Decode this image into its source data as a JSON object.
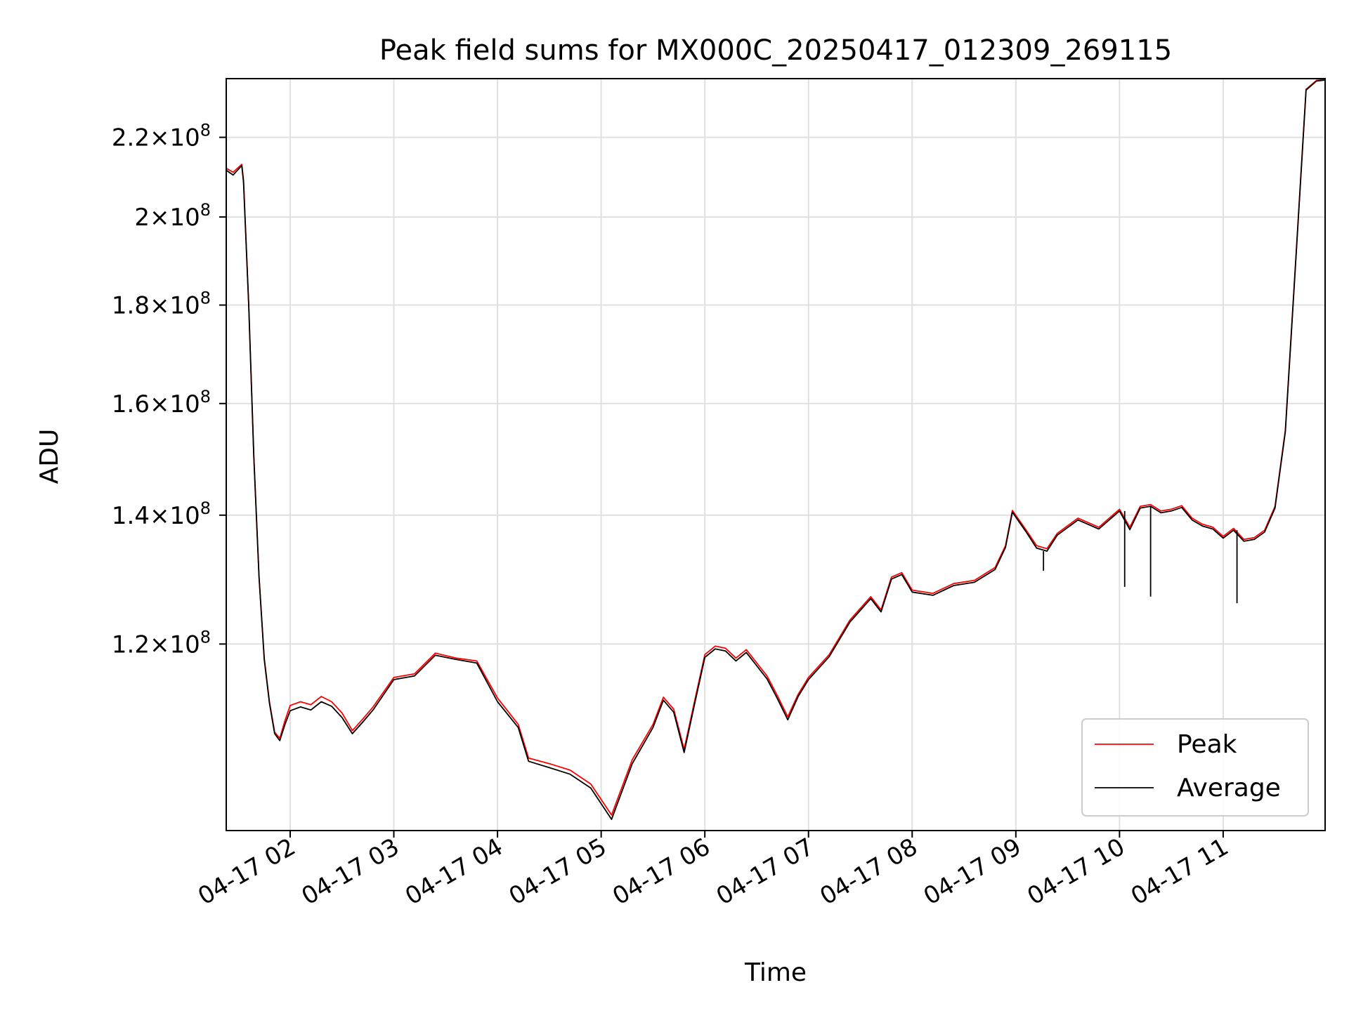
{
  "chart_data": {
    "type": "line",
    "title": "Peak field sums for MX000C_20250417_012309_269115",
    "xlabel": "Time",
    "ylabel": "ADU",
    "yscale": "log",
    "grid": true,
    "legend_position": "lower right",
    "xlim": [
      "2025-04-17 01:23",
      "2025-04-17 11:59"
    ],
    "ylim": [
      96000000,
      236000000
    ],
    "x_ticks": [
      {
        "value": "2025-04-17 02:00",
        "label": "04-17 02"
      },
      {
        "value": "2025-04-17 03:00",
        "label": "04-17 03"
      },
      {
        "value": "2025-04-17 04:00",
        "label": "04-17 04"
      },
      {
        "value": "2025-04-17 05:00",
        "label": "04-17 05"
      },
      {
        "value": "2025-04-17 06:00",
        "label": "04-17 06"
      },
      {
        "value": "2025-04-17 07:00",
        "label": "04-17 07"
      },
      {
        "value": "2025-04-17 08:00",
        "label": "04-17 08"
      },
      {
        "value": "2025-04-17 09:00",
        "label": "04-17 09"
      },
      {
        "value": "2025-04-17 10:00",
        "label": "04-17 10"
      },
      {
        "value": "2025-04-17 11:00",
        "label": "04-17 11"
      }
    ],
    "y_ticks": [
      {
        "value": 120000000,
        "mantissa": "1.2",
        "base": "10",
        "exp": "8"
      },
      {
        "value": 140000000,
        "mantissa": "1.4",
        "base": "10",
        "exp": "8"
      },
      {
        "value": 160000000,
        "mantissa": "1.6",
        "base": "10",
        "exp": "8"
      },
      {
        "value": 180000000,
        "mantissa": "1.8",
        "base": "10",
        "exp": "8"
      },
      {
        "value": 200000000,
        "mantissa": "2",
        "base": "10",
        "exp": "8"
      },
      {
        "value": 220000000,
        "mantissa": "2.2",
        "base": "10",
        "exp": "8"
      }
    ],
    "series": [
      {
        "name": "Peak",
        "color": "#ff0000",
        "points": [
          [
            "2025-04-17 01:23",
            212000000
          ],
          [
            "2025-04-17 01:27",
            211000000
          ],
          [
            "2025-04-17 01:32",
            213000000
          ],
          [
            "2025-04-17 01:33",
            209000000
          ],
          [
            "2025-04-17 01:36",
            180000000
          ],
          [
            "2025-04-17 01:39",
            150000000
          ],
          [
            "2025-04-17 01:42",
            130000000
          ],
          [
            "2025-04-17 01:45",
            118000000
          ],
          [
            "2025-04-17 01:48",
            112000000
          ],
          [
            "2025-04-17 01:51",
            108000000
          ],
          [
            "2025-04-17 01:54",
            107200000
          ],
          [
            "2025-04-17 01:57",
            109500000
          ],
          [
            "2025-04-17 02:00",
            111500000
          ],
          [
            "2025-04-17 02:06",
            112000000
          ],
          [
            "2025-04-17 02:12",
            111600000
          ],
          [
            "2025-04-17 02:18",
            112700000
          ],
          [
            "2025-04-17 02:24",
            112000000
          ],
          [
            "2025-04-17 02:30",
            110500000
          ],
          [
            "2025-04-17 02:36",
            108200000
          ],
          [
            "2025-04-17 02:42",
            109700000
          ],
          [
            "2025-04-17 02:48",
            111300000
          ],
          [
            "2025-04-17 03:00",
            115300000
          ],
          [
            "2025-04-17 03:12",
            115800000
          ],
          [
            "2025-04-17 03:24",
            118700000
          ],
          [
            "2025-04-17 03:36",
            118000000
          ],
          [
            "2025-04-17 03:48",
            117600000
          ],
          [
            "2025-04-17 04:00",
            112500000
          ],
          [
            "2025-04-17 04:12",
            109000000
          ],
          [
            "2025-04-17 04:18",
            104700000
          ],
          [
            "2025-04-17 04:30",
            104000000
          ],
          [
            "2025-04-17 04:42",
            103200000
          ],
          [
            "2025-04-17 04:54",
            101500000
          ],
          [
            "2025-04-17 05:06",
            97800000
          ],
          [
            "2025-04-17 05:18",
            104500000
          ],
          [
            "2025-04-17 05:30",
            109000000
          ],
          [
            "2025-04-17 05:36",
            112600000
          ],
          [
            "2025-04-17 05:42",
            111000000
          ],
          [
            "2025-04-17 05:48",
            105800000
          ],
          [
            "2025-04-17 05:54",
            112000000
          ],
          [
            "2025-04-17 06:00",
            118500000
          ],
          [
            "2025-04-17 06:06",
            119700000
          ],
          [
            "2025-04-17 06:12",
            119400000
          ],
          [
            "2025-04-17 06:18",
            118000000
          ],
          [
            "2025-04-17 06:24",
            119200000
          ],
          [
            "2025-04-17 06:36",
            115500000
          ],
          [
            "2025-04-17 06:42",
            112800000
          ],
          [
            "2025-04-17 06:48",
            110000000
          ],
          [
            "2025-04-17 06:54",
            113000000
          ],
          [
            "2025-04-17 07:00",
            115300000
          ],
          [
            "2025-04-17 07:12",
            118500000
          ],
          [
            "2025-04-17 07:24",
            123500000
          ],
          [
            "2025-04-17 07:36",
            127000000
          ],
          [
            "2025-04-17 07:42",
            125000000
          ],
          [
            "2025-04-17 07:48",
            130000000
          ],
          [
            "2025-04-17 07:54",
            130700000
          ],
          [
            "2025-04-17 08:00",
            128000000
          ],
          [
            "2025-04-17 08:12",
            127500000
          ],
          [
            "2025-04-17 08:24",
            129000000
          ],
          [
            "2025-04-17 08:36",
            129500000
          ],
          [
            "2025-04-17 08:48",
            131500000
          ],
          [
            "2025-04-17 08:54",
            135000000
          ],
          [
            "2025-04-17 08:58",
            140800000
          ],
          [
            "2025-04-17 09:06",
            137500000
          ],
          [
            "2025-04-17 09:12",
            135000000
          ],
          [
            "2025-04-17 09:18",
            134500000
          ],
          [
            "2025-04-17 09:24",
            137000000
          ],
          [
            "2025-04-17 09:36",
            139500000
          ],
          [
            "2025-04-17 09:48",
            138000000
          ],
          [
            "2025-04-17 10:00",
            141000000
          ],
          [
            "2025-04-17 10:06",
            138000000
          ],
          [
            "2025-04-17 10:12",
            141500000
          ],
          [
            "2025-04-17 10:18",
            141800000
          ],
          [
            "2025-04-17 10:24",
            140700000
          ],
          [
            "2025-04-17 10:30",
            141000000
          ],
          [
            "2025-04-17 10:36",
            141600000
          ],
          [
            "2025-04-17 10:42",
            139500000
          ],
          [
            "2025-04-17 10:48",
            138500000
          ],
          [
            "2025-04-17 10:54",
            138000000
          ],
          [
            "2025-04-17 11:00",
            136500000
          ],
          [
            "2025-04-17 11:06",
            137800000
          ],
          [
            "2025-04-17 11:12",
            136000000
          ],
          [
            "2025-04-17 11:18",
            136300000
          ],
          [
            "2025-04-17 11:24",
            137500000
          ],
          [
            "2025-04-17 11:30",
            141500000
          ],
          [
            "2025-04-17 11:36",
            155000000
          ],
          [
            "2025-04-17 11:42",
            190000000
          ],
          [
            "2025-04-17 11:48",
            233000000
          ],
          [
            "2025-04-17 11:54",
            235500000
          ],
          [
            "2025-04-17 11:59",
            235800000
          ]
        ]
      },
      {
        "name": "Average",
        "color": "#000000",
        "points": [
          [
            "2025-04-17 01:23",
            211500000
          ],
          [
            "2025-04-17 01:27",
            210300000
          ],
          [
            "2025-04-17 01:32",
            212700000
          ],
          [
            "2025-04-17 01:33",
            208500000
          ],
          [
            "2025-04-17 01:36",
            180000000
          ],
          [
            "2025-04-17 01:39",
            150000000
          ],
          [
            "2025-04-17 01:42",
            130000000
          ],
          [
            "2025-04-17 01:45",
            117800000
          ],
          [
            "2025-04-17 01:48",
            111800000
          ],
          [
            "2025-04-17 01:51",
            107800000
          ],
          [
            "2025-04-17 01:54",
            106900000
          ],
          [
            "2025-04-17 01:57",
            109000000
          ],
          [
            "2025-04-17 02:00",
            110800000
          ],
          [
            "2025-04-17 02:06",
            111300000
          ],
          [
            "2025-04-17 02:12",
            110900000
          ],
          [
            "2025-04-17 02:18",
            112000000
          ],
          [
            "2025-04-17 02:24",
            111400000
          ],
          [
            "2025-04-17 02:30",
            109900000
          ],
          [
            "2025-04-17 02:36",
            107800000
          ],
          [
            "2025-04-17 02:42",
            109300000
          ],
          [
            "2025-04-17 02:48",
            110900000
          ],
          [
            "2025-04-17 03:00",
            115000000
          ],
          [
            "2025-04-17 03:12",
            115500000
          ],
          [
            "2025-04-17 03:24",
            118400000
          ],
          [
            "2025-04-17 03:36",
            117800000
          ],
          [
            "2025-04-17 03:48",
            117300000
          ],
          [
            "2025-04-17 04:00",
            112000000
          ],
          [
            "2025-04-17 04:12",
            108600000
          ],
          [
            "2025-04-17 04:18",
            104300000
          ],
          [
            "2025-04-17 04:30",
            103500000
          ],
          [
            "2025-04-17 04:42",
            102700000
          ],
          [
            "2025-04-17 04:54",
            101000000
          ],
          [
            "2025-04-17 05:06",
            97300000
          ],
          [
            "2025-04-17 05:18",
            104000000
          ],
          [
            "2025-04-17 05:30",
            108600000
          ],
          [
            "2025-04-17 05:36",
            112200000
          ],
          [
            "2025-04-17 05:42",
            110600000
          ],
          [
            "2025-04-17 05:48",
            105400000
          ],
          [
            "2025-04-17 05:54",
            111600000
          ],
          [
            "2025-04-17 06:00",
            118100000
          ],
          [
            "2025-04-17 06:06",
            119300000
          ],
          [
            "2025-04-17 06:12",
            119000000
          ],
          [
            "2025-04-17 06:18",
            117600000
          ],
          [
            "2025-04-17 06:24",
            118800000
          ],
          [
            "2025-04-17 06:36",
            115100000
          ],
          [
            "2025-04-17 06:42",
            112400000
          ],
          [
            "2025-04-17 06:48",
            109600000
          ],
          [
            "2025-04-17 06:54",
            112700000
          ],
          [
            "2025-04-17 07:00",
            115000000
          ],
          [
            "2025-04-17 07:12",
            118200000
          ],
          [
            "2025-04-17 07:24",
            123200000
          ],
          [
            "2025-04-17 07:36",
            126700000
          ],
          [
            "2025-04-17 07:42",
            124700000
          ],
          [
            "2025-04-17 07:48",
            129700000
          ],
          [
            "2025-04-17 07:54",
            130400000
          ],
          [
            "2025-04-17 08:00",
            127700000
          ],
          [
            "2025-04-17 08:12",
            127200000
          ],
          [
            "2025-04-17 08:24",
            128700000
          ],
          [
            "2025-04-17 08:36",
            129200000
          ],
          [
            "2025-04-17 08:48",
            131200000
          ],
          [
            "2025-04-17 08:54",
            134700000
          ],
          [
            "2025-04-17 08:58",
            140500000
          ],
          [
            "2025-04-17 09:06",
            137200000
          ],
          [
            "2025-04-17 09:12",
            134600000
          ],
          [
            "2025-04-17 09:18",
            134100000
          ],
          [
            "2025-04-17 09:24",
            136700000
          ],
          [
            "2025-04-17 09:36",
            139200000
          ],
          [
            "2025-04-17 09:48",
            137700000
          ],
          [
            "2025-04-17 10:00",
            140700000
          ],
          [
            "2025-04-17 10:06",
            137600000
          ],
          [
            "2025-04-17 10:12",
            141200000
          ],
          [
            "2025-04-17 10:18",
            141500000
          ],
          [
            "2025-04-17 10:24",
            140400000
          ],
          [
            "2025-04-17 10:30",
            140700000
          ],
          [
            "2025-04-17 10:36",
            141300000
          ],
          [
            "2025-04-17 10:42",
            139200000
          ],
          [
            "2025-04-17 10:48",
            138200000
          ],
          [
            "2025-04-17 10:54",
            137700000
          ],
          [
            "2025-04-17 11:00",
            136200000
          ],
          [
            "2025-04-17 11:06",
            137500000
          ],
          [
            "2025-04-17 11:12",
            135700000
          ],
          [
            "2025-04-17 11:18",
            136000000
          ],
          [
            "2025-04-17 11:24",
            137200000
          ],
          [
            "2025-04-17 11:30",
            141200000
          ],
          [
            "2025-04-17 11:36",
            154700000
          ],
          [
            "2025-04-17 11:42",
            189700000
          ],
          [
            "2025-04-17 11:48",
            232800000
          ],
          [
            "2025-04-17 11:54",
            235300000
          ],
          [
            "2025-04-17 11:59",
            235600000
          ]
        ]
      }
    ],
    "annotation_dips": [
      {
        "x": "2025-04-17 09:16",
        "low": 131000000
      },
      {
        "x": "2025-04-17 10:03",
        "low": 128500000
      },
      {
        "x": "2025-04-17 10:18",
        "low": 127000000
      },
      {
        "x": "2025-04-17 11:08",
        "low": 126000000
      }
    ]
  }
}
